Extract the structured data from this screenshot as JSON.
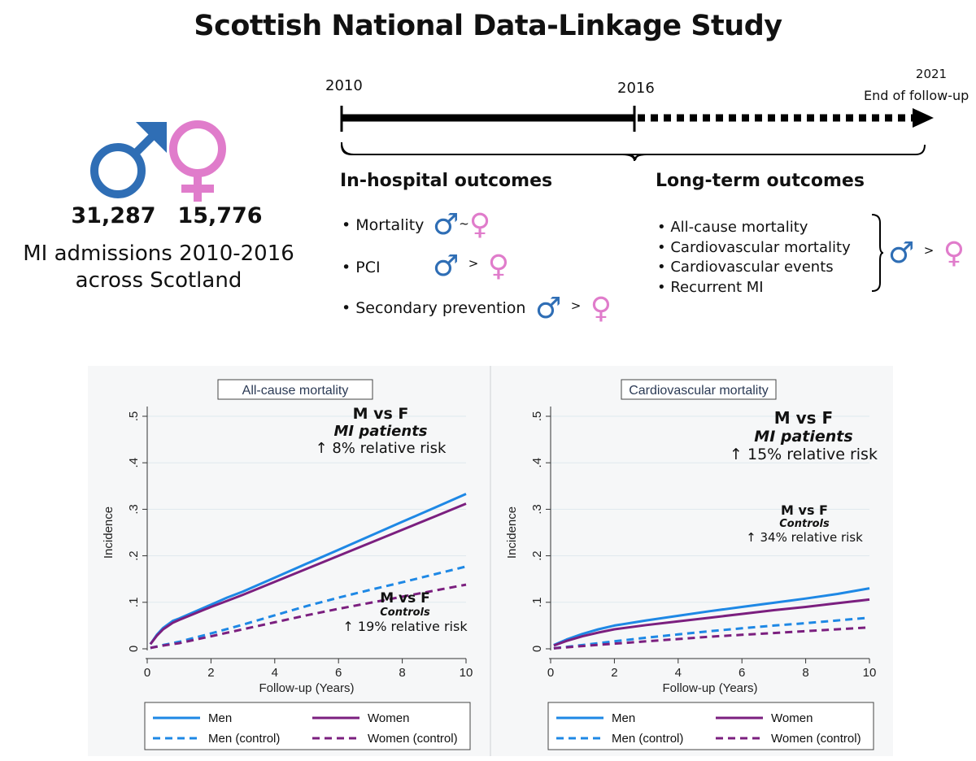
{
  "title": "Scottish National Data-Linkage Study",
  "summary": {
    "men_count": "31,287",
    "women_count": "15,776",
    "description_line1": "MI admissions 2010-2016",
    "description_line2": "across Scotland",
    "male_symbol": "♂",
    "female_symbol": "♀"
  },
  "timeline": {
    "start_year": "2010",
    "mid_year": "2016",
    "end_year": "2021",
    "end_label": "End of follow-up"
  },
  "in_hospital": {
    "heading": "In-hospital outcomes",
    "items": [
      {
        "label": "Mortality",
        "comparator": "~"
      },
      {
        "label": "PCI",
        "comparator": ">"
      },
      {
        "label": "Secondary prevention",
        "comparator": ">"
      }
    ]
  },
  "long_term": {
    "heading": "Long-term outcomes",
    "items": [
      "All-cause mortality",
      "Cardiovascular mortality",
      "Cardiovascular events",
      "Recurrent MI"
    ],
    "comparator": ">"
  },
  "colors": {
    "men": "#1e88e5",
    "women": "#7b1f7f",
    "male_symbol": "#2f6eb5",
    "female_symbol": "#e07ccb"
  },
  "chart_data": [
    {
      "type": "line",
      "title": "All-cause mortality",
      "xlabel": "Follow-up (Years)",
      "ylabel": "Incidence",
      "xlim": [
        0,
        10
      ],
      "ylim": [
        0,
        0.5
      ],
      "xticks": [
        "0",
        "2",
        "4",
        "6",
        "8",
        "10"
      ],
      "yticks": [
        "0",
        ".1",
        ".2",
        ".3",
        ".4",
        ".5"
      ],
      "series": [
        {
          "name": "Men",
          "style": "solid",
          "x": [
            0.1,
            0.3,
            0.5,
            0.8,
            1,
            1.5,
            2,
            2.5,
            3,
            4,
            5,
            6,
            7,
            8,
            9,
            10
          ],
          "y": [
            0.01,
            0.03,
            0.045,
            0.06,
            0.065,
            0.08,
            0.095,
            0.11,
            0.123,
            0.153,
            0.183,
            0.213,
            0.243,
            0.273,
            0.303,
            0.333
          ]
        },
        {
          "name": "Women",
          "style": "solid",
          "x": [
            0.1,
            0.3,
            0.5,
            0.8,
            1,
            1.5,
            2,
            2.5,
            3,
            4,
            5,
            6,
            7,
            8,
            9,
            10
          ],
          "y": [
            0.01,
            0.028,
            0.042,
            0.056,
            0.062,
            0.076,
            0.09,
            0.103,
            0.116,
            0.144,
            0.172,
            0.2,
            0.228,
            0.256,
            0.284,
            0.312
          ]
        },
        {
          "name": "Men (control)",
          "style": "dash",
          "x": [
            0.1,
            0.5,
            1,
            2,
            3,
            4,
            5,
            6,
            7,
            8,
            9,
            10
          ],
          "y": [
            0.002,
            0.008,
            0.015,
            0.033,
            0.052,
            0.072,
            0.092,
            0.11,
            0.127,
            0.143,
            0.16,
            0.177
          ]
        },
        {
          "name": "Women (control)",
          "style": "dash",
          "x": [
            0.1,
            0.5,
            1,
            2,
            3,
            4,
            5,
            6,
            7,
            8,
            9,
            10
          ],
          "y": [
            0.002,
            0.007,
            0.012,
            0.027,
            0.042,
            0.057,
            0.072,
            0.086,
            0.099,
            0.112,
            0.125,
            0.138
          ]
        }
      ],
      "annotations": [
        {
          "heading": "M vs F",
          "group": "MI patients",
          "risk": "↑ 8% relative risk"
        },
        {
          "heading": "M vs F",
          "group": "Controls",
          "risk": "↑ 19% relative risk"
        }
      ]
    },
    {
      "type": "line",
      "title": "Cardiovascular mortality",
      "xlabel": "Follow-up (Years)",
      "ylabel": "Incidence",
      "xlim": [
        0,
        10
      ],
      "ylim": [
        0,
        0.5
      ],
      "xticks": [
        "0",
        "2",
        "4",
        "6",
        "8",
        "10"
      ],
      "yticks": [
        "0",
        ".1",
        ".2",
        ".3",
        ".4",
        ".5"
      ],
      "series": [
        {
          "name": "Men",
          "style": "solid",
          "x": [
            0.1,
            0.5,
            1,
            1.5,
            2,
            3,
            4,
            5,
            6,
            7,
            8,
            9,
            10
          ],
          "y": [
            0.008,
            0.02,
            0.032,
            0.042,
            0.05,
            0.061,
            0.071,
            0.081,
            0.09,
            0.099,
            0.108,
            0.118,
            0.13
          ]
        },
        {
          "name": "Women",
          "style": "solid",
          "x": [
            0.1,
            0.5,
            1,
            1.5,
            2,
            3,
            4,
            5,
            6,
            7,
            8,
            9,
            10
          ],
          "y": [
            0.007,
            0.017,
            0.027,
            0.035,
            0.042,
            0.051,
            0.059,
            0.067,
            0.075,
            0.083,
            0.09,
            0.098,
            0.106
          ]
        },
        {
          "name": "Men (control)",
          "style": "dash",
          "x": [
            0.1,
            1,
            2,
            3,
            4,
            5,
            6,
            7,
            8,
            9,
            10
          ],
          "y": [
            0.001,
            0.008,
            0.016,
            0.024,
            0.031,
            0.038,
            0.044,
            0.05,
            0.055,
            0.061,
            0.067
          ]
        },
        {
          "name": "Women (control)",
          "style": "dash",
          "x": [
            0.1,
            1,
            2,
            3,
            4,
            5,
            6,
            7,
            8,
            9,
            10
          ],
          "y": [
            0.001,
            0.006,
            0.011,
            0.016,
            0.021,
            0.026,
            0.03,
            0.034,
            0.038,
            0.042,
            0.046
          ]
        }
      ],
      "annotations": [
        {
          "heading": "M vs F",
          "group": "MI patients",
          "risk": "↑ 15% relative risk"
        },
        {
          "heading": "M vs F",
          "group": "Controls",
          "risk": "↑ 34% relative risk"
        }
      ]
    }
  ]
}
